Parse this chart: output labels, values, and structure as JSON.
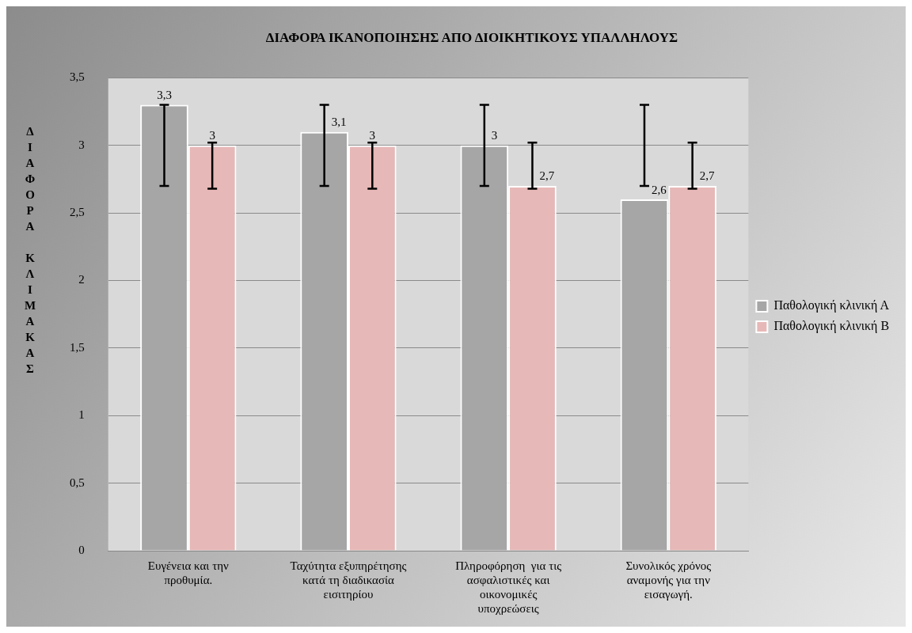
{
  "chart_data": {
    "type": "bar",
    "title": "ΔΙΑΦΟΡΑ ΙΚΑΝΟΠΟΙΗΣΗΣ ΑΠΟ ΔΙΟΙΚΗΤΙΚΟΥΣ ΥΠΑΛΛΗΛΟΥΣ",
    "ylabel": "ΔΙΑΦΟΡΑ ΚΛΙΜΑΚΑΣ",
    "categories": [
      "Ευγένεια και την προθυμία.",
      "Ταχύτητα εξυπηρέτησης κατά τη διαδικασία εισιτηρίου",
      "Πληροφόρηση  για τις ασφαλιστικές και οικονομικές υποχρεώσεις",
      "Συνολικός χρόνος αναμονής για την εισαγωγή."
    ],
    "series": [
      {
        "name": "Παθολογική κλινική Α",
        "color": "#a6a6a6",
        "values": [
          3.3,
          3.1,
          3,
          2.6
        ],
        "value_labels": [
          "3,3",
          "3,1",
          "3",
          "2,6"
        ],
        "errors": [
          [
            2.7,
            3.3
          ],
          [
            2.7,
            3.3
          ],
          [
            2.7,
            3.3
          ],
          [
            2.7,
            3.3
          ]
        ]
      },
      {
        "name": "Παθολογική κλινική Β",
        "color": "#e6b8b7",
        "values": [
          3,
          3,
          2.7,
          2.7
        ],
        "value_labels": [
          "3",
          "3",
          "2,7",
          "2,7"
        ],
        "errors": [
          [
            2.68,
            3.02
          ],
          [
            2.68,
            3.02
          ],
          [
            2.68,
            3.02
          ],
          [
            2.68,
            3.02
          ]
        ]
      }
    ],
    "ylim": [
      0,
      3.5
    ],
    "yticks": [
      0,
      {
        "value": 0.5,
        "label": "0,5"
      },
      1,
      {
        "value": 1.5,
        "label": "1,5"
      },
      2,
      {
        "value": 2.5,
        "label": "2,5"
      },
      3,
      {
        "value": 3.5,
        "label": "3,5"
      }
    ],
    "grid": "y",
    "legend": "right"
  }
}
